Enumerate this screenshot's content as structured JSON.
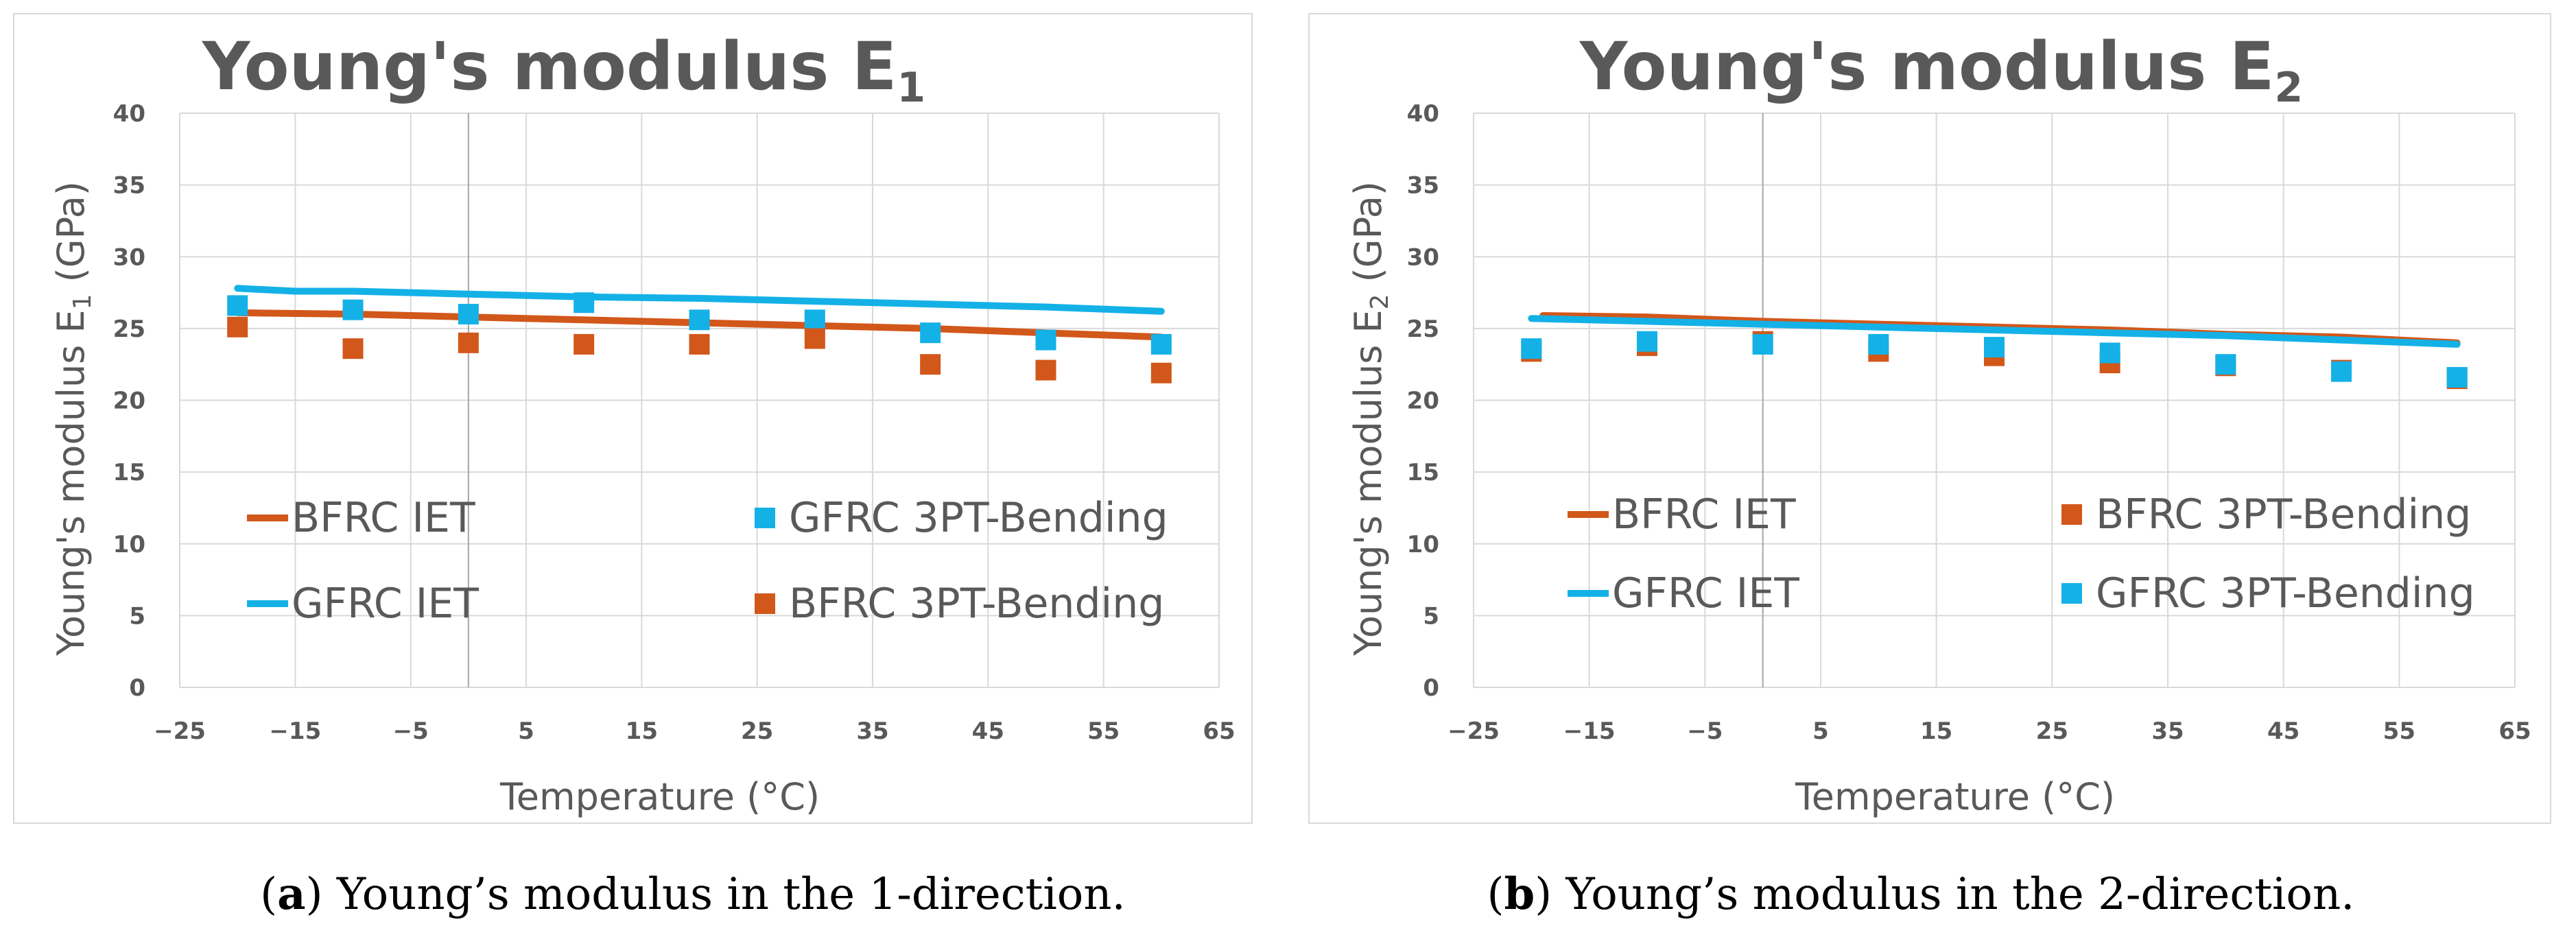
{
  "colors": {
    "bfrc": "#d2571a",
    "gfrc": "#14b1e7"
  },
  "chart_data": [
    {
      "type": "line",
      "title": "Young's modulus E",
      "title_subscript": "1",
      "xlabel": "Temperature (°C)",
      "ylabel": "Young's modulus E",
      "ylabel_subscript": "1",
      "ylabel_unit": " (GPa)",
      "xlim": [
        -25,
        65
      ],
      "ylim": [
        0,
        40
      ],
      "xticks": [
        "−25",
        "−15",
        "−5",
        "5",
        "15",
        "25",
        "35",
        "45",
        "55",
        "65"
      ],
      "yticks": [
        "0",
        "5",
        "10",
        "15",
        "20",
        "25",
        "30",
        "35",
        "40"
      ],
      "caption_letter": "a",
      "caption_text": ") Young’s modulus in the 1-direction.",
      "legend_order": [
        "BFRC IET",
        "GFRC 3PT-Bending",
        "GFRC IET",
        "BFRC 3PT-Bending"
      ],
      "series": [
        {
          "name": "BFRC IET",
          "kind": "line",
          "color": "bfrc",
          "x": [
            -20,
            -10,
            0,
            10,
            20,
            30,
            40,
            50,
            60
          ],
          "y": [
            26.1,
            26.0,
            25.8,
            25.6,
            25.4,
            25.2,
            25.0,
            24.7,
            24.4
          ]
        },
        {
          "name": "GFRC IET",
          "kind": "line",
          "color": "gfrc",
          "x": [
            -20,
            -15,
            -10,
            0,
            10,
            20,
            30,
            40,
            50,
            60
          ],
          "y": [
            27.8,
            27.6,
            27.6,
            27.4,
            27.2,
            27.1,
            26.9,
            26.7,
            26.5,
            26.2
          ]
        },
        {
          "name": "GFRC 3PT-Bending",
          "kind": "scatter",
          "color": "gfrc",
          "x": [
            -20,
            -10,
            0,
            10,
            20,
            30,
            40,
            50,
            60
          ],
          "y": [
            26.6,
            26.3,
            26.0,
            26.8,
            25.6,
            25.6,
            24.7,
            24.2,
            23.9
          ]
        },
        {
          "name": "BFRC 3PT-Bending",
          "kind": "scatter",
          "color": "bfrc",
          "x": [
            -20,
            -10,
            0,
            10,
            20,
            30,
            40,
            50,
            60
          ],
          "y": [
            25.1,
            23.6,
            24.0,
            23.9,
            23.9,
            24.3,
            22.5,
            22.1,
            21.9
          ]
        }
      ]
    },
    {
      "type": "line",
      "title": "Young's modulus E",
      "title_subscript": "2",
      "xlabel": "Temperature (°C)",
      "ylabel": "Young's modulus E",
      "ylabel_subscript": "2",
      "ylabel_unit": " (GPa)",
      "xlim": [
        -25,
        65
      ],
      "ylim": [
        0,
        40
      ],
      "xticks": [
        "−25",
        "−15",
        "−5",
        "5",
        "15",
        "25",
        "35",
        "45",
        "55",
        "65"
      ],
      "yticks": [
        "0",
        "5",
        "10",
        "15",
        "20",
        "25",
        "30",
        "35",
        "40"
      ],
      "caption_letter": "b",
      "caption_text": ") Young’s modulus in the 2-direction.",
      "legend_order": [
        "BFRC IET",
        "BFRC 3PT-Bending",
        "GFRC IET",
        "GFRC 3PT-Bending"
      ],
      "series": [
        {
          "name": "BFRC IET",
          "kind": "line",
          "color": "bfrc",
          "x": [
            -19,
            -10,
            0,
            10,
            20,
            30,
            40,
            50,
            60
          ],
          "y": [
            25.9,
            25.8,
            25.5,
            25.3,
            25.1,
            24.9,
            24.6,
            24.4,
            24.0
          ]
        },
        {
          "name": "GFRC IET",
          "kind": "line",
          "color": "gfrc",
          "x": [
            -20,
            -10,
            0,
            10,
            20,
            30,
            40,
            50,
            60
          ],
          "y": [
            25.7,
            25.5,
            25.3,
            25.1,
            24.9,
            24.7,
            24.5,
            24.2,
            23.9
          ]
        },
        {
          "name": "BFRC 3PT-Bending",
          "kind": "scatter",
          "color": "bfrc",
          "x": [
            -20,
            -10,
            0,
            10,
            20,
            30,
            40,
            50,
            60
          ],
          "y": [
            23.4,
            23.8,
            24.1,
            23.4,
            23.1,
            22.6,
            22.4,
            22.1,
            21.5
          ]
        },
        {
          "name": "GFRC 3PT-Bending",
          "kind": "scatter",
          "color": "gfrc",
          "x": [
            -20,
            -10,
            0,
            10,
            20,
            30,
            40,
            50,
            60
          ],
          "y": [
            23.6,
            24.1,
            23.9,
            23.9,
            23.7,
            23.3,
            22.5,
            22.0,
            21.6
          ]
        }
      ]
    }
  ]
}
